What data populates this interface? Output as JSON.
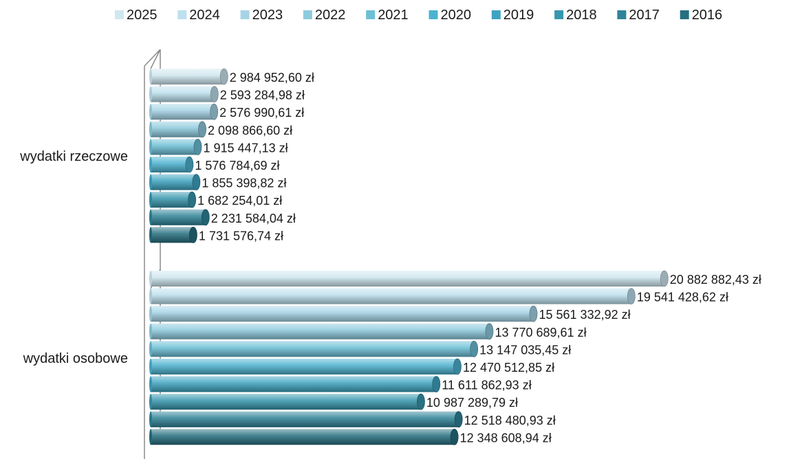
{
  "chart_data": {
    "type": "bar",
    "orientation": "horizontal",
    "style": "3d-cylinder",
    "legend_position": "top",
    "grid": false,
    "xlim": [
      0,
      21000000
    ],
    "categories": [
      "wydatki rzeczowe",
      "wydatki osobowe"
    ],
    "series": [
      {
        "name": "2025",
        "color": "#cfe7f0",
        "values": [
          2984952.6,
          20882882.43
        ],
        "labels": [
          "2 984 952,60 zł",
          "20 882 882,43 zł"
        ]
      },
      {
        "name": "2024",
        "color": "#bde0ee",
        "values": [
          2593284.98,
          19541428.62
        ],
        "labels": [
          "2 593 284,98 zł",
          "19 541 428,62 zł"
        ]
      },
      {
        "name": "2023",
        "color": "#a6d4e6",
        "values": [
          2576990.61,
          15561332.92
        ],
        "labels": [
          "2 576 990,61 zł",
          "15 561 332,92 zł"
        ]
      },
      {
        "name": "2022",
        "color": "#8ecadd",
        "values": [
          2098866.6,
          13770689.61
        ],
        "labels": [
          "2 098 866,60 zł",
          "13 770 689,61 zł"
        ]
      },
      {
        "name": "2021",
        "color": "#6cbfd6",
        "values": [
          1915447.13,
          13147035.45
        ],
        "labels": [
          "1 915 447,13 zł",
          "13 147 035,45 zł"
        ]
      },
      {
        "name": "2020",
        "color": "#4cb2d0",
        "values": [
          1576784.69,
          12470512.85
        ],
        "labels": [
          "1 576 784,69 zł",
          "12 470 512,85 zł"
        ]
      },
      {
        "name": "2019",
        "color": "#3ea4c1",
        "values": [
          1855398.82,
          11611862.93
        ],
        "labels": [
          "1 855 398,82 zł",
          "11 611 862,93 zł"
        ]
      },
      {
        "name": "2018",
        "color": "#3797ae",
        "values": [
          1682254.01,
          10987289.79
        ],
        "labels": [
          "1 682 254,01 zł",
          "10 987 289,79 zł"
        ]
      },
      {
        "name": "2017",
        "color": "#2f8499",
        "values": [
          2231584.04,
          12518480.93
        ],
        "labels": [
          "2 231 584,04 zł",
          "12 518 480,93 zł"
        ]
      },
      {
        "name": "2016",
        "color": "#266f80",
        "values": [
          1731576.74,
          12348608.94
        ],
        "labels": [
          "1 731 576,74 zł",
          "12 348 608,94 zł"
        ]
      }
    ]
  }
}
